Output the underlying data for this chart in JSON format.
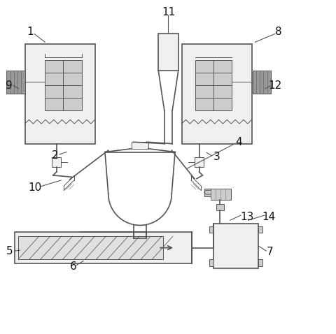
{
  "fig_bg": "#ffffff",
  "lc": "#555555",
  "fc_light": "#f0f0f0",
  "fc_gray": "#cccccc",
  "fc_dark": "#999999",
  "lw_main": 1.2,
  "lw_thin": 0.7
}
